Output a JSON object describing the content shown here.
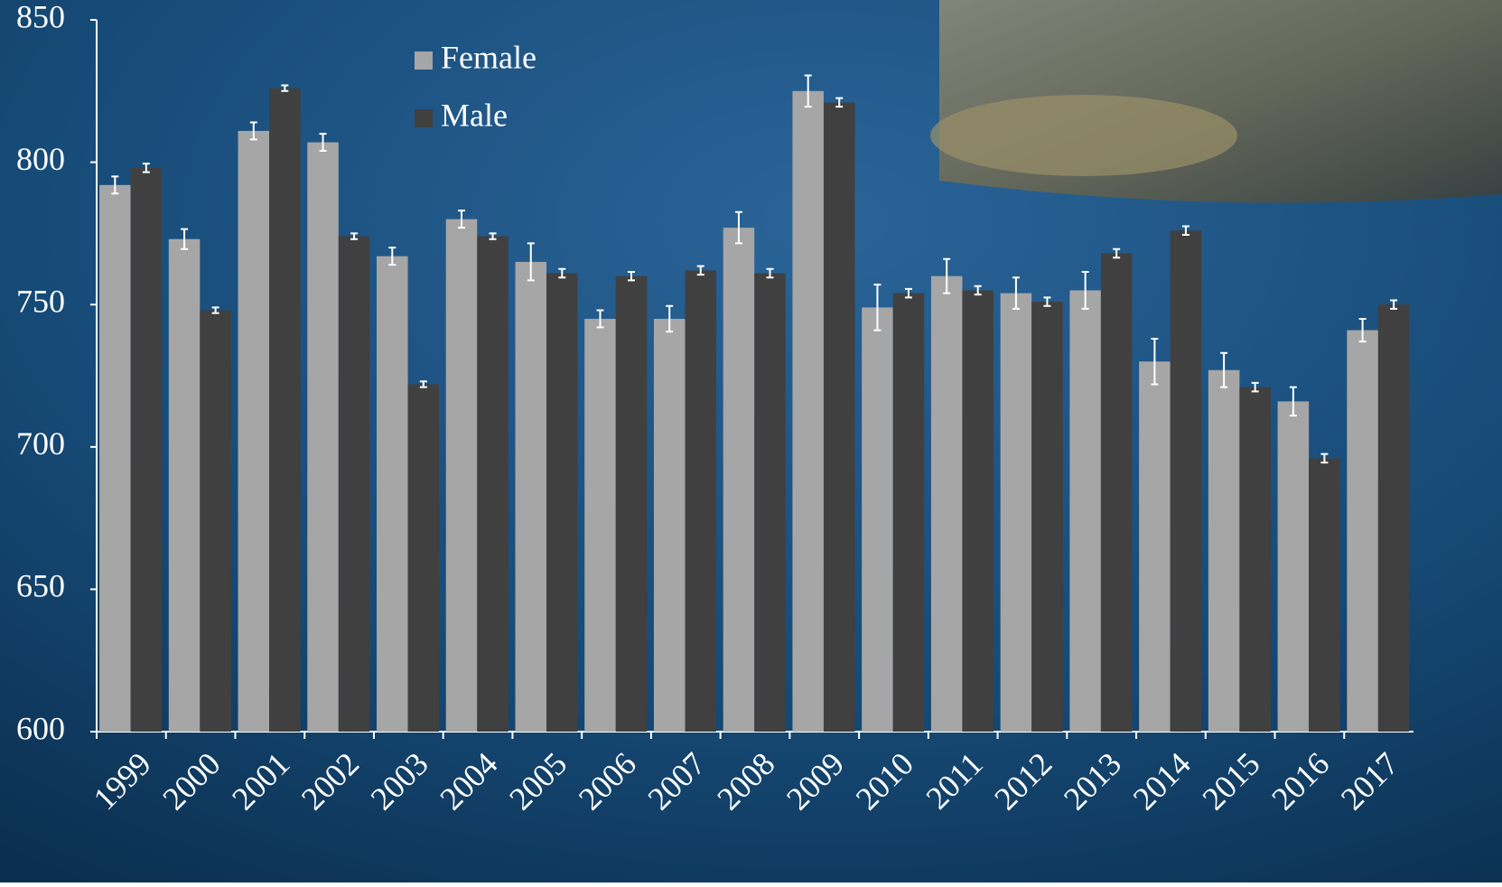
{
  "chart_data": {
    "type": "bar",
    "categories": [
      "1999",
      "2000",
      "2001",
      "2002",
      "2003",
      "2004",
      "2005",
      "2006",
      "2007",
      "2008",
      "2009",
      "2010",
      "2011",
      "2012",
      "2013",
      "2014",
      "2015",
      "2016",
      "2017"
    ],
    "series": [
      {
        "name": "Female",
        "color": "#a6a6a6",
        "values": [
          792,
          773,
          811,
          807,
          767,
          780,
          765,
          745,
          745,
          777,
          825,
          749,
          760,
          754,
          755,
          730,
          727,
          716,
          741
        ],
        "errors": [
          3,
          3.5,
          3,
          3,
          3,
          3,
          6.5,
          3,
          4.5,
          5.5,
          5.5,
          8,
          6,
          5.5,
          6.5,
          8,
          6,
          5,
          4
        ]
      },
      {
        "name": "Male",
        "color": "#404040",
        "values": [
          798,
          748,
          826,
          774,
          722,
          774,
          761,
          760,
          762,
          761,
          821,
          754,
          755,
          751,
          768,
          776,
          721,
          696,
          750
        ],
        "errors": [
          1.5,
          1,
          1,
          1,
          1,
          1,
          1.5,
          1.5,
          1.5,
          1.5,
          1.5,
          1.5,
          1.5,
          1.5,
          1.5,
          1.5,
          1.5,
          1.5,
          1.5
        ]
      }
    ],
    "ylim": [
      600,
      850
    ],
    "yticks": [
      600,
      650,
      700,
      750,
      800,
      850
    ],
    "legend": "top"
  }
}
